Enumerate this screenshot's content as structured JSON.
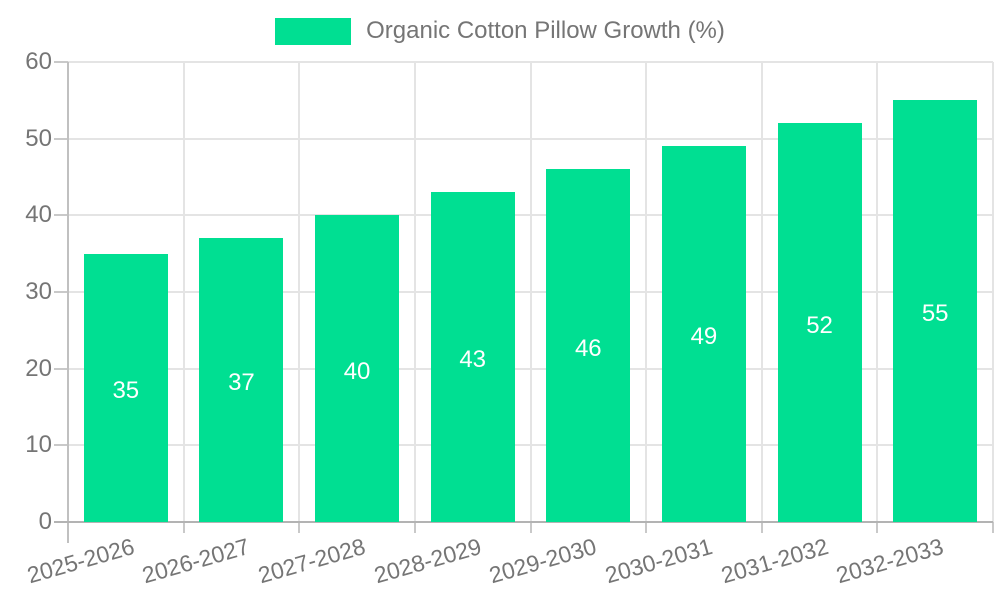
{
  "legend": {
    "label": "Organic Cotton Pillow Growth (%)"
  },
  "chart_data": {
    "type": "bar",
    "title": "Organic Cotton Pillow Growth (%)",
    "categories": [
      "2025-2026",
      "2026-2027",
      "2027-2028",
      "2028-2029",
      "2029-2030",
      "2030-2031",
      "2031-2032",
      "2032-2033"
    ],
    "values": [
      35,
      37,
      40,
      43,
      46,
      49,
      52,
      55
    ],
    "xlabel": "",
    "ylabel": "",
    "ylim": [
      0,
      60
    ],
    "yticks": [
      0,
      10,
      20,
      30,
      40,
      50,
      60
    ],
    "grid": true,
    "legend_position": "top-center",
    "bar_color": "#00DF92",
    "bar_label_color": "#ffffff",
    "axis_text_color": "#757575"
  }
}
